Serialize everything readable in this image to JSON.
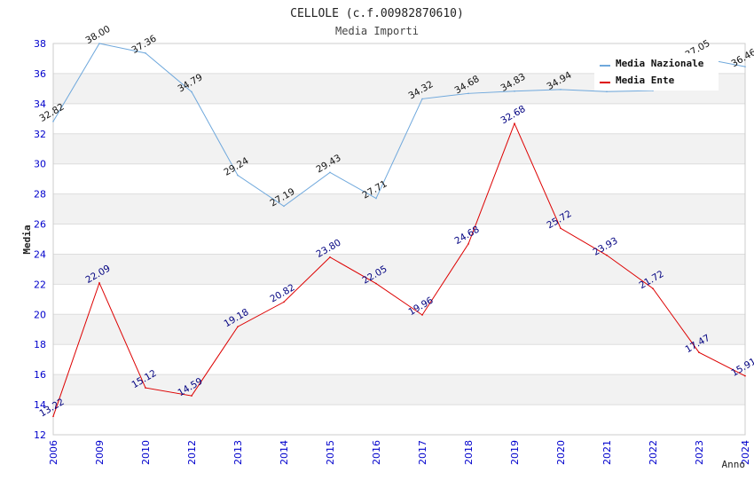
{
  "chart_data": {
    "type": "line",
    "title": "CELLOLE (c.f.00982870610)",
    "subtitle": "Media Importi",
    "xlabel": "Anno",
    "ylabel": "Media",
    "ylim": [
      12,
      38
    ],
    "yticks": [
      12,
      14,
      16,
      18,
      20,
      22,
      24,
      26,
      28,
      30,
      32,
      34,
      36,
      38
    ],
    "grid": "horizontal bands",
    "categories": [
      "2006",
      "2009",
      "2010",
      "2012",
      "2013",
      "2014",
      "2015",
      "2016",
      "2017",
      "2018",
      "2019",
      "2020",
      "2021",
      "2022",
      "2023",
      "2024"
    ],
    "series": [
      {
        "name": "Media Nazionale",
        "color": "#6fa8dc",
        "label_color": "#111111",
        "values": [
          32.82,
          38.0,
          37.36,
          34.79,
          29.24,
          27.19,
          29.43,
          27.71,
          34.32,
          34.68,
          34.83,
          34.94,
          34.8,
          34.87,
          37.05,
          36.46
        ],
        "labels": [
          "32.82",
          "38.00",
          "37.36",
          "34.79",
          "29.24",
          "27.19",
          "29.43",
          "27.71",
          "34.32",
          "34.68",
          "34.83",
          "34.94",
          "",
          "",
          "37.05",
          "36.46"
        ]
      },
      {
        "name": "Media Ente",
        "color": "#dd0000",
        "label_color": "#000080",
        "values": [
          13.22,
          22.09,
          15.12,
          14.59,
          19.18,
          20.82,
          23.8,
          22.05,
          19.96,
          24.68,
          32.68,
          25.72,
          23.93,
          21.72,
          17.47,
          15.91
        ],
        "labels": [
          "13.22",
          "22.09",
          "15.12",
          "14.59",
          "19.18",
          "20.82",
          "23.80",
          "22.05",
          "19.96",
          "24.68",
          "32.68",
          "25.72",
          "23.93",
          "21.72",
          "17.47",
          "15.91"
        ]
      }
    ],
    "legend": "top-right"
  }
}
